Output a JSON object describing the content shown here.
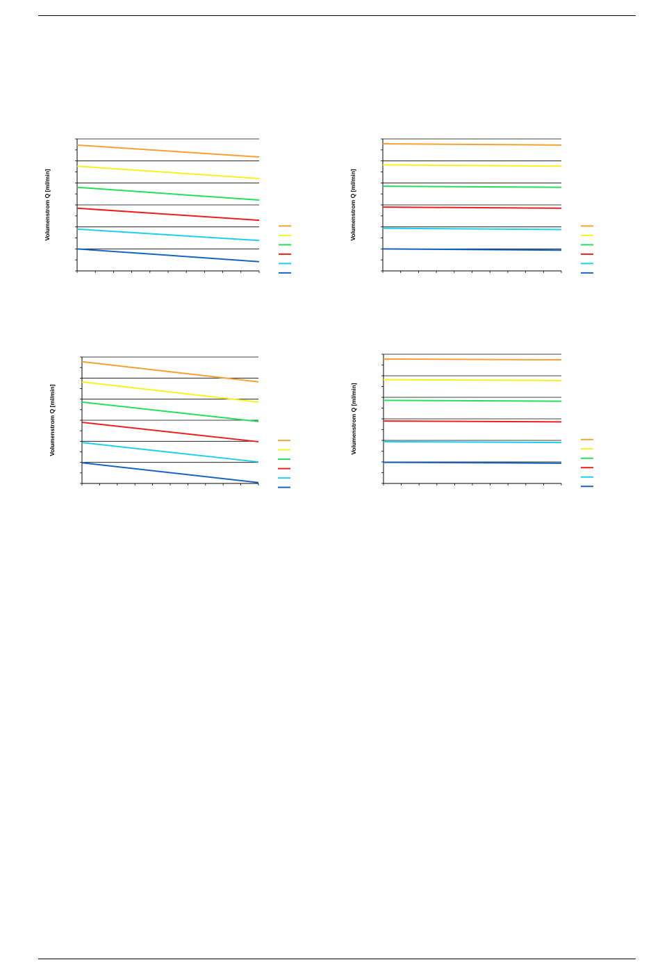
{
  "colors": {
    "orange": "#f7a030",
    "yellow": "#f7f21c",
    "green": "#22e05a",
    "red": "#ef1e1e",
    "cyan": "#1ccff0",
    "blue": "#1565c0"
  },
  "chart_data": [
    {
      "type": "line",
      "ylabel": "Volumenstrom Q [ml/min]",
      "x_range": [
        0,
        10
      ],
      "ylim": [
        0,
        6
      ],
      "grid": true,
      "legend": "right",
      "series": [
        {
          "color": "orange",
          "values": [
            5.72,
            5.18
          ]
        },
        {
          "color": "yellow",
          "values": [
            4.76,
            4.2
          ]
        },
        {
          "color": "green",
          "values": [
            3.8,
            3.22
          ]
        },
        {
          "color": "red",
          "values": [
            2.85,
            2.3
          ]
        },
        {
          "color": "cyan",
          "values": [
            1.9,
            1.38
          ]
        },
        {
          "color": "blue",
          "values": [
            1.0,
            0.42
          ]
        }
      ]
    },
    {
      "type": "line",
      "ylabel": "Volumenstrom Q [ml/min]",
      "x_range": [
        0,
        10
      ],
      "ylim": [
        0,
        6
      ],
      "grid": true,
      "legend": "right",
      "series": [
        {
          "color": "orange",
          "values": [
            5.78,
            5.72
          ]
        },
        {
          "color": "yellow",
          "values": [
            4.82,
            4.76
          ]
        },
        {
          "color": "green",
          "values": [
            3.85,
            3.8
          ]
        },
        {
          "color": "red",
          "values": [
            2.9,
            2.85
          ]
        },
        {
          "color": "cyan",
          "values": [
            1.94,
            1.88
          ]
        },
        {
          "color": "blue",
          "values": [
            1.0,
            0.94
          ]
        }
      ]
    },
    {
      "type": "line",
      "ylabel": "Volumenstrom Q [ml/min]",
      "x_range": [
        0,
        10
      ],
      "ylim": [
        0,
        6
      ],
      "grid": true,
      "legend": "right",
      "series": [
        {
          "color": "orange",
          "values": [
            5.78,
            4.82
          ]
        },
        {
          "color": "yellow",
          "values": [
            4.82,
            3.86
          ]
        },
        {
          "color": "green",
          "values": [
            3.86,
            2.94
          ]
        },
        {
          "color": "red",
          "values": [
            2.9,
            1.98
          ]
        },
        {
          "color": "cyan",
          "values": [
            1.94,
            1.02
          ]
        },
        {
          "color": "blue",
          "values": [
            0.98,
            0.04
          ]
        }
      ]
    },
    {
      "type": "line",
      "ylabel": "Volumenstrom Q [ml/min]",
      "x_range": [
        0,
        10
      ],
      "ylim": [
        0,
        6
      ],
      "grid": true,
      "legend": "right",
      "series": [
        {
          "color": "orange",
          "values": [
            5.78,
            5.74
          ]
        },
        {
          "color": "yellow",
          "values": [
            4.82,
            4.78
          ]
        },
        {
          "color": "green",
          "values": [
            3.86,
            3.82
          ]
        },
        {
          "color": "red",
          "values": [
            2.9,
            2.86
          ]
        },
        {
          "color": "cyan",
          "values": [
            1.94,
            1.9
          ]
        },
        {
          "color": "blue",
          "values": [
            0.98,
            0.94
          ]
        }
      ]
    }
  ]
}
